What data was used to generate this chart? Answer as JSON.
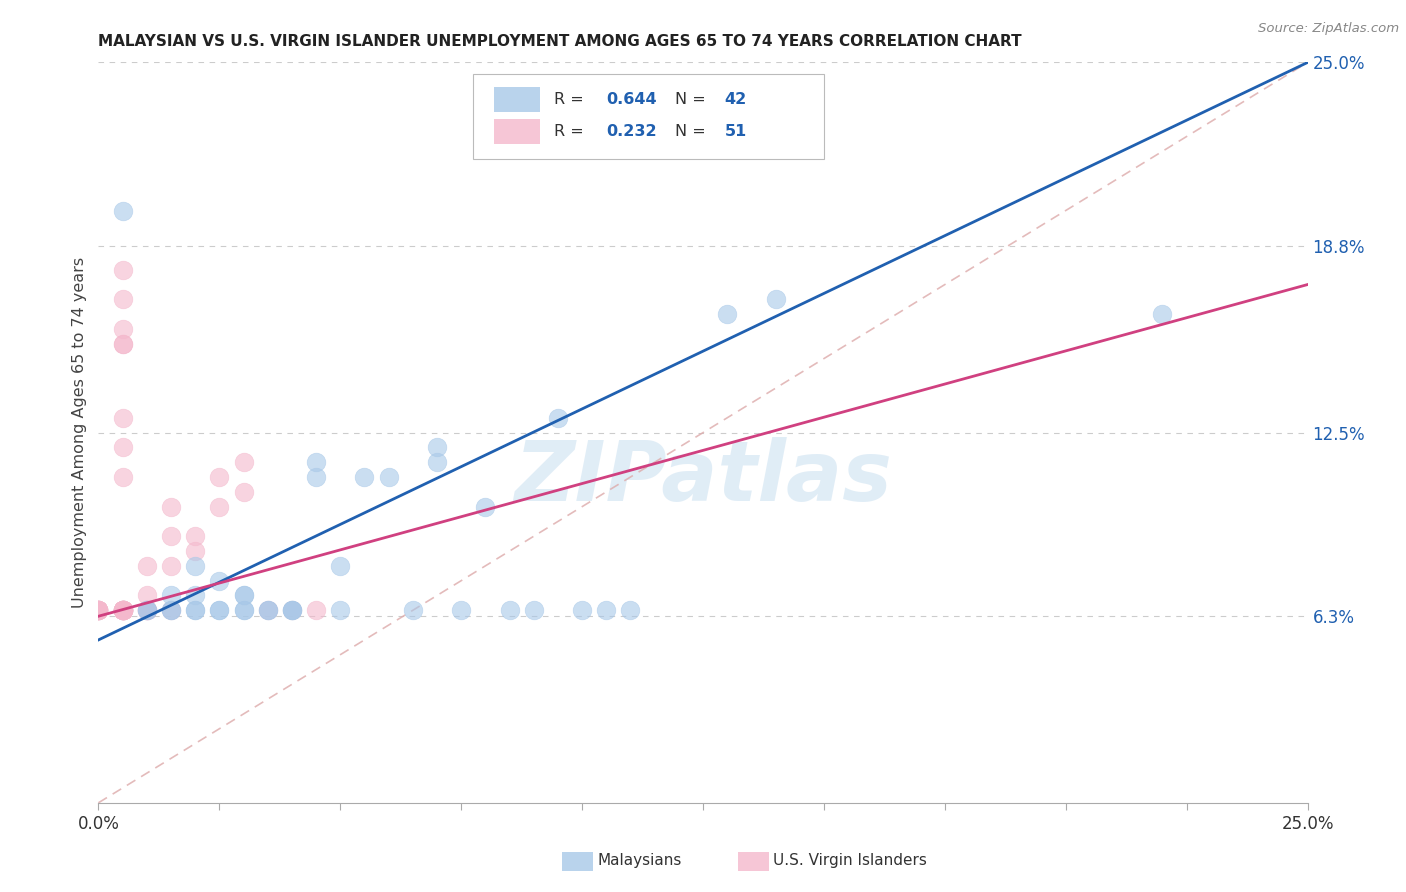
{
  "title": "MALAYSIAN VS U.S. VIRGIN ISLANDER UNEMPLOYMENT AMONG AGES 65 TO 74 YEARS CORRELATION CHART",
  "source": "Source: ZipAtlas.com",
  "ylabel": "Unemployment Among Ages 65 to 74 years",
  "xlim": [
    0.0,
    0.25
  ],
  "ylim": [
    0.0,
    0.25
  ],
  "xtick_positions": [
    0.0,
    0.025,
    0.05,
    0.075,
    0.1,
    0.125,
    0.15,
    0.175,
    0.2,
    0.225,
    0.25
  ],
  "xtick_labels_show": {
    "0.0": "0.0%",
    "0.25": "25.0%"
  },
  "right_ytick_positions": [
    0.063,
    0.125,
    0.188,
    0.25
  ],
  "right_ytick_labels": [
    "6.3%",
    "12.5%",
    "18.8%",
    "25.0%"
  ],
  "legend_R_blue": "0.644",
  "legend_N_blue": "42",
  "legend_R_pink": "0.232",
  "legend_N_pink": "51",
  "blue_scatter_x": [
    0.005,
    0.01,
    0.01,
    0.015,
    0.015,
    0.015,
    0.02,
    0.02,
    0.02,
    0.02,
    0.025,
    0.025,
    0.025,
    0.03,
    0.03,
    0.03,
    0.03,
    0.035,
    0.035,
    0.04,
    0.04,
    0.04,
    0.045,
    0.045,
    0.05,
    0.05,
    0.055,
    0.06,
    0.065,
    0.07,
    0.07,
    0.075,
    0.08,
    0.085,
    0.09,
    0.095,
    0.1,
    0.105,
    0.11,
    0.13,
    0.14,
    0.22
  ],
  "blue_scatter_y": [
    0.2,
    0.065,
    0.065,
    0.065,
    0.065,
    0.07,
    0.065,
    0.065,
    0.07,
    0.08,
    0.065,
    0.065,
    0.075,
    0.065,
    0.065,
    0.07,
    0.07,
    0.065,
    0.065,
    0.065,
    0.065,
    0.065,
    0.11,
    0.115,
    0.08,
    0.065,
    0.11,
    0.11,
    0.065,
    0.115,
    0.12,
    0.065,
    0.1,
    0.065,
    0.065,
    0.13,
    0.065,
    0.065,
    0.065,
    0.165,
    0.17,
    0.165
  ],
  "pink_scatter_x": [
    0.0,
    0.0,
    0.0,
    0.0,
    0.0,
    0.0,
    0.0,
    0.0,
    0.0,
    0.0,
    0.0,
    0.005,
    0.005,
    0.005,
    0.005,
    0.005,
    0.005,
    0.005,
    0.005,
    0.005,
    0.005,
    0.005,
    0.005,
    0.005,
    0.01,
    0.01,
    0.01,
    0.01,
    0.01,
    0.01,
    0.015,
    0.015,
    0.015,
    0.015,
    0.02,
    0.02,
    0.025,
    0.025,
    0.03,
    0.03,
    0.035,
    0.04,
    0.045,
    0.005,
    0.005,
    0.005,
    0.005,
    0.005,
    0.005,
    0.005,
    0.005
  ],
  "pink_scatter_y": [
    0.065,
    0.065,
    0.065,
    0.065,
    0.065,
    0.065,
    0.065,
    0.065,
    0.065,
    0.065,
    0.065,
    0.065,
    0.065,
    0.065,
    0.065,
    0.065,
    0.065,
    0.065,
    0.065,
    0.065,
    0.065,
    0.065,
    0.065,
    0.065,
    0.065,
    0.065,
    0.065,
    0.065,
    0.07,
    0.08,
    0.065,
    0.08,
    0.09,
    0.1,
    0.085,
    0.09,
    0.1,
    0.11,
    0.105,
    0.115,
    0.065,
    0.065,
    0.065,
    0.155,
    0.16,
    0.17,
    0.12,
    0.18,
    0.155,
    0.13,
    0.11
  ],
  "blue_color": "#a8c8e8",
  "pink_color": "#f4b8cc",
  "blue_line_color": "#2060b0",
  "pink_line_color": "#d04080",
  "blue_trendline_x": [
    0.0,
    0.25
  ],
  "blue_trendline_y": [
    0.055,
    0.25
  ],
  "pink_trendline_x": [
    0.0,
    0.25
  ],
  "pink_trendline_y": [
    0.063,
    0.175
  ],
  "diagonal_ref_color": "#ddaaaa",
  "watermark": "ZIPatlas",
  "background_color": "#ffffff",
  "grid_color": "#cccccc",
  "grid_linestyle": "--"
}
